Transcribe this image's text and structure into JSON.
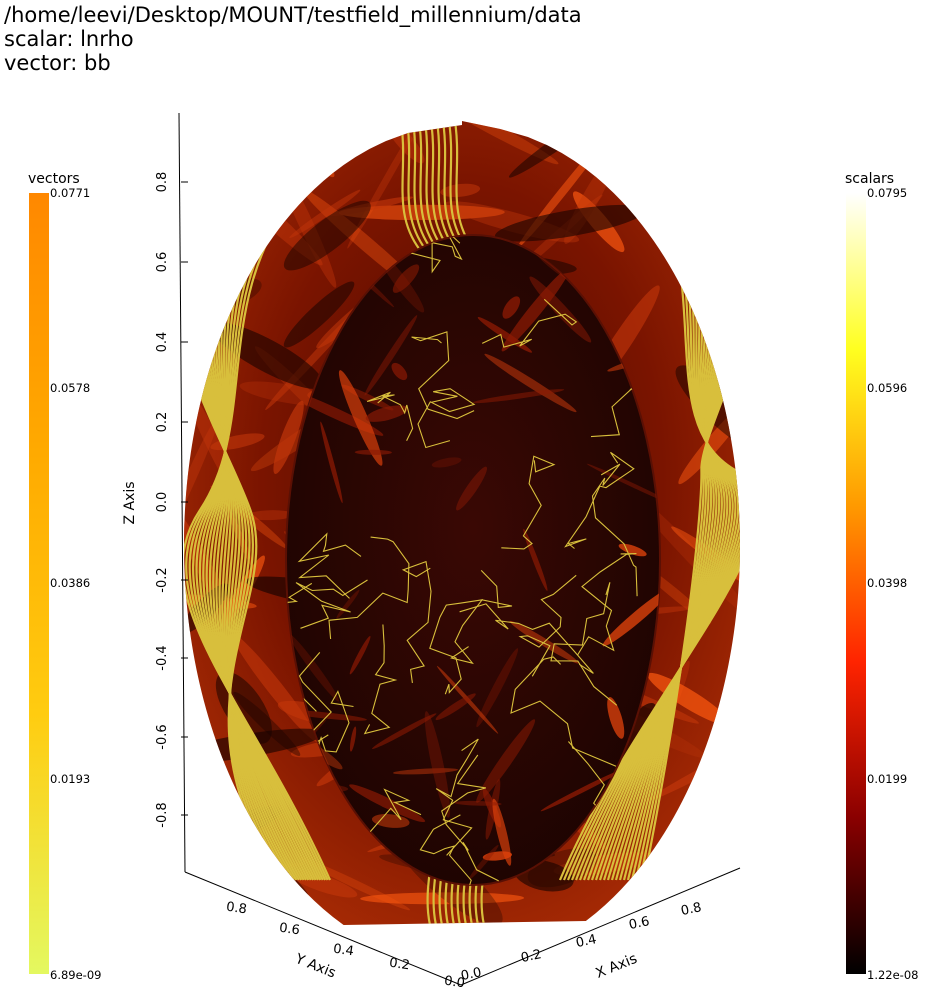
{
  "header": {
    "path": "/home/leevi/Desktop/MOUNT/testfield_millennium/data",
    "scalar_line": "scalar: lnrho",
    "vector_line": "vector: bb"
  },
  "vectors_bar": {
    "title": "vectors",
    "ticks": [
      "0.0771",
      "0.0578",
      "0.0386",
      "0.0193",
      "6.89e-09"
    ],
    "colors": [
      "#ff8800",
      "#ffaa00",
      "#ffcc10",
      "#e4f860"
    ]
  },
  "scalars_bar": {
    "title": "scalars",
    "ticks": [
      "0.0795",
      "0.0596",
      "0.0398",
      "0.0199",
      "1.22e-08"
    ],
    "colors": [
      "#ffffff",
      "#ffff20",
      "#ff9a00",
      "#ff2400",
      "#8a0000",
      "#000000"
    ]
  },
  "z_axis": {
    "title": "Z Axis",
    "ticks": [
      "0.8",
      "0.6",
      "0.4",
      "0.2",
      "0.0",
      "-0.2",
      "-0.4",
      "-0.6",
      "-0.8"
    ]
  },
  "y_axis": {
    "title": "Y Axis",
    "ticks": [
      "0.8",
      "0.6",
      "0.4",
      "0.2",
      "0.0"
    ]
  },
  "x_axis": {
    "title": "X Axis",
    "ticks": [
      "0.0",
      "0.2",
      "0.4",
      "0.6",
      "0.8"
    ]
  },
  "render_colors": {
    "shell": "#7a1400",
    "interior": "#2a0602",
    "streamline": "#d8bf3c",
    "highlight": "#ff5a10"
  }
}
